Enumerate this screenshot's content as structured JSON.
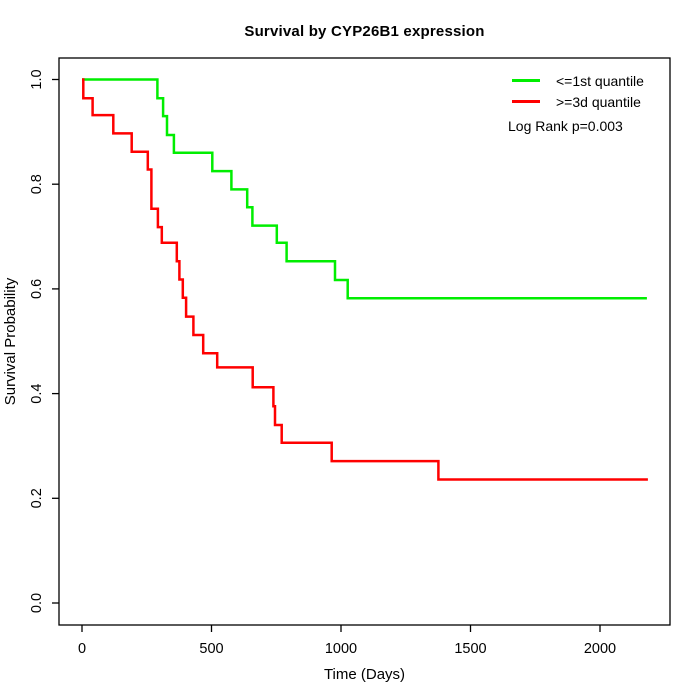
{
  "chart_data": {
    "type": "line",
    "subtype": "kaplan-meier-step",
    "title": "Survival by CYP26B1 expression",
    "xlabel": "Time (Days)",
    "ylabel": "Survival Probability",
    "xlim": [
      0,
      2200
    ],
    "ylim": [
      0.0,
      1.0
    ],
    "grid": false,
    "legend_position": "top-right",
    "annotation": "Log Rank p=0.003",
    "xticks": [
      0,
      500,
      1000,
      1500,
      2000
    ],
    "xtick_labels": [
      "0",
      "500",
      "1000",
      "1500",
      "2000"
    ],
    "yticks": [
      0.0,
      0.2,
      0.4,
      0.6,
      0.8,
      1.0
    ],
    "ytick_labels": [
      "0.0",
      "0.2",
      "0.4",
      "0.6",
      "0.8",
      "1.0"
    ],
    "series": [
      {
        "name": "<=1st quantile",
        "color": "#00ee00",
        "points": [
          [
            0,
            1.0
          ],
          [
            291,
            0.964
          ],
          [
            313,
            0.93
          ],
          [
            328,
            0.894
          ],
          [
            355,
            0.86
          ],
          [
            503,
            0.825
          ],
          [
            577,
            0.79
          ],
          [
            638,
            0.756
          ],
          [
            658,
            0.721
          ],
          [
            752,
            0.688
          ],
          [
            790,
            0.653
          ],
          [
            977,
            0.617
          ],
          [
            1026,
            0.582
          ],
          [
            2181,
            0.582
          ]
        ]
      },
      {
        "name": ">=3d quantile",
        "color": "#ff0000",
        "points": [
          [
            0,
            1.0
          ],
          [
            5,
            0.964
          ],
          [
            41,
            0.932
          ],
          [
            121,
            0.897
          ],
          [
            192,
            0.862
          ],
          [
            254,
            0.828
          ],
          [
            268,
            0.753
          ],
          [
            293,
            0.718
          ],
          [
            308,
            0.688
          ],
          [
            366,
            0.653
          ],
          [
            376,
            0.618
          ],
          [
            389,
            0.583
          ],
          [
            402,
            0.547
          ],
          [
            430,
            0.512
          ],
          [
            468,
            0.477
          ],
          [
            522,
            0.45
          ],
          [
            659,
            0.412
          ],
          [
            739,
            0.376
          ],
          [
            745,
            0.34
          ],
          [
            771,
            0.306
          ],
          [
            964,
            0.271
          ],
          [
            1376,
            0.236
          ],
          [
            2185,
            0.236
          ]
        ]
      }
    ]
  }
}
